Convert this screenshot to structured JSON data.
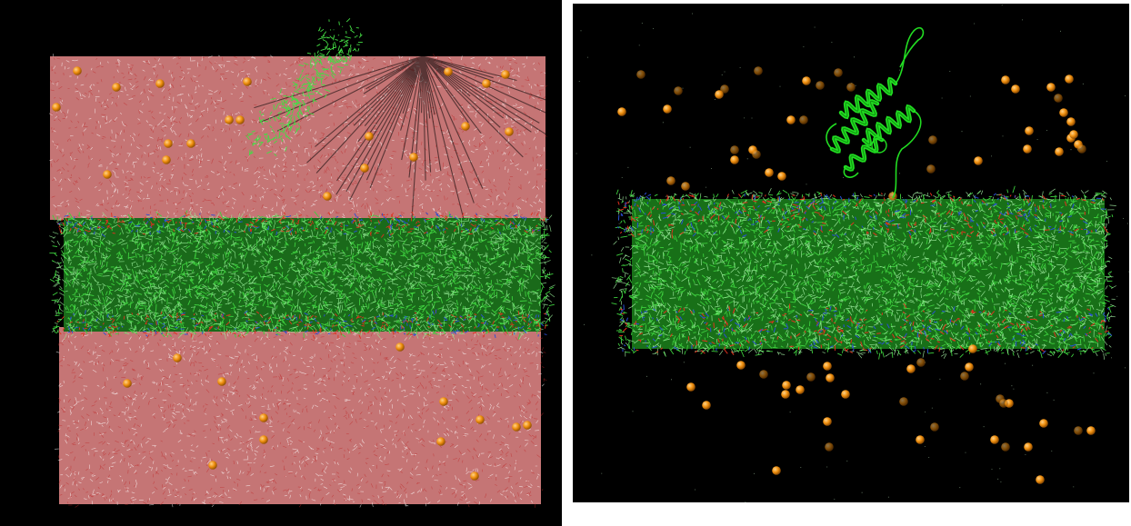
{
  "panels": [
    {
      "id": "left",
      "description_label": "",
      "background": "#000000",
      "content": [
        "water-box",
        "lipid-bilayer",
        "ions",
        "protein-wireframe"
      ],
      "colors": {
        "water": "#e88a8a",
        "water_highlight": "#ffffff",
        "lipid": "#3ecf3e",
        "headgroup_oxygen": "#e0301e",
        "headgroup_nitrogen": "#2a4fd6",
        "ion": "#e8800c",
        "protein": "#44dd44"
      }
    },
    {
      "id": "right",
      "description_label": "",
      "background": "#000000",
      "content": [
        "lipid-bilayer",
        "ions",
        "protein-cartoon"
      ],
      "colors": {
        "lipid": "#3ecf3e",
        "headgroup_oxygen": "#e0301e",
        "headgroup_nitrogen": "#2a4fd6",
        "ion": "#e8800c",
        "protein": "#22dd22"
      }
    }
  ]
}
